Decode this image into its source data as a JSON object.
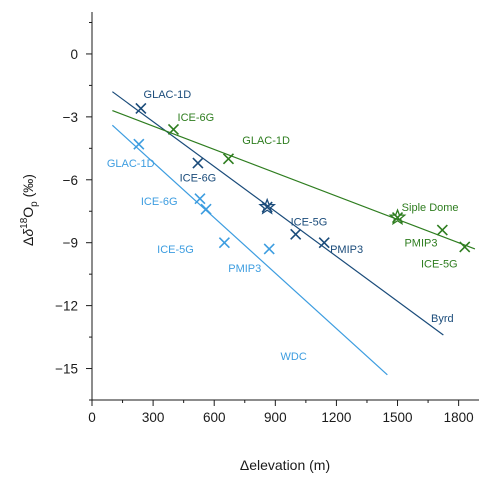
{
  "chart_data": {
    "type": "scatter",
    "xlabel": "Δelevation (m)",
    "ylabel_parts": {
      "delta": "Δ",
      "italic": "δ",
      "sup": "18",
      "main": "O",
      "sub": "p",
      "unit": " (‰)"
    },
    "xlim": [
      0,
      1900
    ],
    "ylim": [
      -16.5,
      2
    ],
    "xticks": [
      0,
      300,
      600,
      900,
      1200,
      1500,
      1800
    ],
    "xtick_labels": [
      "0",
      "300",
      "600",
      "900",
      "1200",
      "1500",
      "1800"
    ],
    "yticks": [
      0,
      -3,
      -6,
      -9,
      -12,
      -15
    ],
    "ytick_labels": [
      "0",
      "−3",
      "−6",
      "−9",
      "−12",
      "−15"
    ],
    "grid": false,
    "legend": "none",
    "series": [
      {
        "name": "Byrd",
        "color": "#1a4b7a",
        "line": {
          "x": [
            100,
            1725
          ],
          "y": [
            -1.8,
            -13.4
          ]
        },
        "points": [
          {
            "x": 240,
            "y": -2.6,
            "marker": "x"
          },
          {
            "x": 520,
            "y": -5.2,
            "marker": "x"
          },
          {
            "x": 860,
            "y": -7.3,
            "marker": "x"
          },
          {
            "x": 860,
            "y": -7.3,
            "marker": "star"
          },
          {
            "x": 1000,
            "y": -8.6,
            "marker": "x"
          },
          {
            "x": 1140,
            "y": -9.0,
            "marker": "x"
          }
        ],
        "labels": [
          {
            "text": "GLAC-1D",
            "x": 370,
            "y": -1.9
          },
          {
            "text": "ICE-6G",
            "x": 520,
            "y": -5.9
          },
          {
            "text": "ICE-5G",
            "x": 1065,
            "y": -8.0
          },
          {
            "text": "PMIP3",
            "x": 1250,
            "y": -9.3
          },
          {
            "text": "Byrd",
            "x": 1720,
            "y": -12.6
          }
        ]
      },
      {
        "name": "Siple Dome",
        "color": "#2e7d1f",
        "line": {
          "x": [
            100,
            1880
          ],
          "y": [
            -2.7,
            -9.3
          ]
        },
        "points": [
          {
            "x": 400,
            "y": -3.6,
            "marker": "x"
          },
          {
            "x": 670,
            "y": -5.0,
            "marker": "x"
          },
          {
            "x": 1500,
            "y": -7.8,
            "marker": "x"
          },
          {
            "x": 1500,
            "y": -7.8,
            "marker": "star"
          },
          {
            "x": 1720,
            "y": -8.4,
            "marker": "x"
          },
          {
            "x": 1830,
            "y": -9.2,
            "marker": "x"
          }
        ],
        "labels": [
          {
            "text": "ICE-6G",
            "x": 510,
            "y": -3.0
          },
          {
            "text": "GLAC-1D",
            "x": 855,
            "y": -4.1
          },
          {
            "text": "Siple Dome",
            "x": 1660,
            "y": -7.3
          },
          {
            "text": "PMIP3",
            "x": 1615,
            "y": -9.0
          },
          {
            "text": "ICE-5G",
            "x": 1705,
            "y": -10.0
          }
        ]
      },
      {
        "name": "WDC",
        "color": "#3d9de0",
        "line": {
          "x": [
            100,
            1450
          ],
          "y": [
            -3.4,
            -15.3
          ]
        },
        "points": [
          {
            "x": 230,
            "y": -4.3,
            "marker": "x"
          },
          {
            "x": 530,
            "y": -6.9,
            "marker": "x"
          },
          {
            "x": 560,
            "y": -7.4,
            "marker": "x"
          },
          {
            "x": 650,
            "y": -9.0,
            "marker": "x"
          },
          {
            "x": 870,
            "y": -9.3,
            "marker": "x"
          }
        ],
        "labels": [
          {
            "text": "GLAC-1D",
            "x": 190,
            "y": -5.2
          },
          {
            "text": "ICE-6G",
            "x": 330,
            "y": -7.0
          },
          {
            "text": "ICE-5G",
            "x": 410,
            "y": -9.3
          },
          {
            "text": "PMIP3",
            "x": 750,
            "y": -10.2
          },
          {
            "text": "WDC",
            "x": 990,
            "y": -14.4
          }
        ]
      }
    ]
  }
}
